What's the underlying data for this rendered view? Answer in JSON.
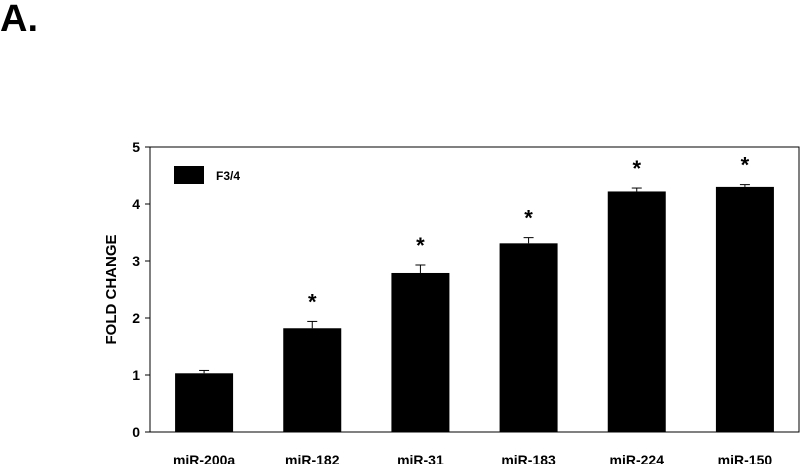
{
  "panel_label": "A.",
  "chart_data": {
    "type": "bar",
    "title": "",
    "xlabel": "",
    "ylabel": "FOLD CHANGE",
    "ylim": [
      0,
      5
    ],
    "yticks": [
      0,
      1,
      2,
      3,
      4,
      5
    ],
    "grid": false,
    "legend_position": "top-left",
    "categories": [
      "miR-200a",
      "miR-182",
      "miR-31",
      "miR-183",
      "miR-224",
      "miR-150"
    ],
    "series": [
      {
        "name": "F3/4",
        "color": "#000000",
        "values": [
          1.03,
          1.82,
          2.79,
          3.31,
          4.22,
          4.3
        ],
        "errors": [
          0.05,
          0.12,
          0.14,
          0.1,
          0.06,
          0.04
        ],
        "annotations": [
          "",
          "*",
          "*",
          "*",
          "*",
          "*"
        ]
      }
    ]
  }
}
